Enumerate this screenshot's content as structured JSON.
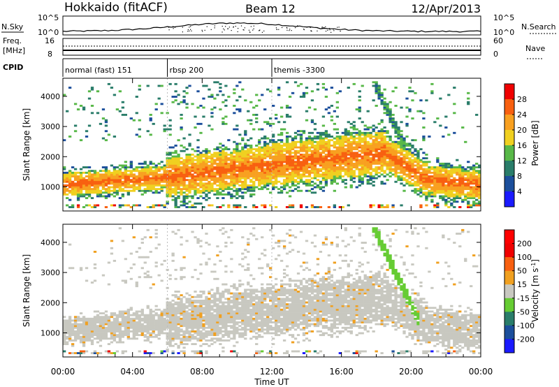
{
  "header": {
    "radar": "Hokkaido (fitACF)",
    "beam": "Beam 12",
    "date": "12/Apr/2013"
  },
  "top_panel": {
    "left_label": "N.Sky",
    "right_label": "N.Search",
    "left_ticks": [
      "10^5",
      "10^0"
    ],
    "right_ticks": [
      "10^5",
      "10^0"
    ]
  },
  "freq_panel": {
    "left_label_line1": "Freq.",
    "left_label_line2": "[MHz]",
    "right_label": "Nave",
    "left_ticks": [
      "16",
      "8"
    ],
    "right_ticks": [
      "60",
      "0"
    ]
  },
  "cpid_panel": {
    "label": "CPID",
    "segments": [
      {
        "label": "normal (fast) 151",
        "start_hour": 0,
        "end_hour": 6
      },
      {
        "label": "rbsp 200",
        "start_hour": 6,
        "end_hour": 12
      },
      {
        "label": "themis -3300",
        "start_hour": 12,
        "end_hour": 24
      }
    ]
  },
  "chart_data": [
    {
      "type": "heatmap",
      "name": "power",
      "ylabel": "Slant Range [km]",
      "ylim": [
        200,
        4600
      ],
      "yticks": [
        "1000",
        "2000",
        "3000",
        "4000"
      ],
      "xlim": [
        0,
        24
      ],
      "colorbar_label": "Power [dB]",
      "colorbar_ticks": [
        "4",
        "8",
        "12",
        "16",
        "20",
        "24",
        "28"
      ],
      "colorbar_range": [
        0,
        32
      ],
      "colors": [
        "#1a1aff",
        "#1c4f9c",
        "#2a7d6a",
        "#58b848",
        "#f0d020",
        "#f8a020",
        "#f86010",
        "#f00000"
      ]
    },
    {
      "type": "heatmap",
      "name": "velocity",
      "ylabel": "Slant Range [km]",
      "ylim": [
        200,
        4600
      ],
      "yticks": [
        "1000",
        "2000",
        "3000",
        "4000"
      ],
      "xlim": [
        0,
        24
      ],
      "xlabel": "Time UT",
      "xticks": [
        "00:00",
        "04:00",
        "08:00",
        "12:00",
        "16:00",
        "20:00",
        "00:00"
      ],
      "colorbar_label": "Velocity [m s^-1]",
      "colorbar_ticks": [
        "200",
        "100",
        "50",
        "15",
        "-15",
        "-50",
        "-100",
        "-200"
      ],
      "colors": [
        "#1a1aff",
        "#1c4f9c",
        "#2a7d6a",
        "#66cc33",
        "#c8c8c0",
        "#f0a020",
        "#f86010",
        "#f00000",
        "#ff0000"
      ]
    }
  ]
}
